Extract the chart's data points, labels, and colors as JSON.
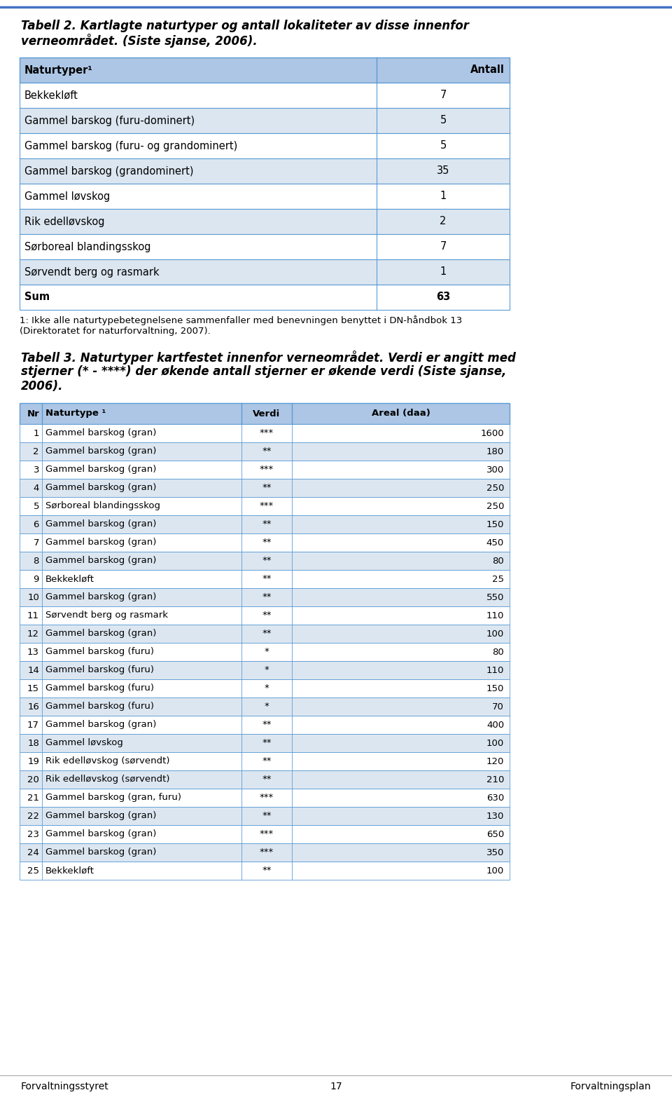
{
  "page_bg": "#ffffff",
  "top_line_color": "#4472c4",
  "header_bg": "#adc6e5",
  "title1_line1": "Tabell 2. Kartlagte naturtyper og antall lokaliteter av disse innenfor",
  "title1_line2": "verneområdet. (Siste sjanse, 2006).",
  "table1_col1_header": "Naturtyper¹",
  "table1_col2_header": "Antall",
  "table1_rows": [
    [
      "Bekkekløft",
      "7"
    ],
    [
      "Gammel barskog (furu-dominert)",
      "5"
    ],
    [
      "Gammel barskog (furu- og grandominert)",
      "5"
    ],
    [
      "Gammel barskog (grandominert)",
      "35"
    ],
    [
      "Gammel løvskog",
      "1"
    ],
    [
      "Rik edelløvskog",
      "2"
    ],
    [
      "Sørboreal blandingsskog",
      "7"
    ],
    [
      "Sørvendt berg og rasmark",
      "1"
    ],
    [
      "Sum",
      "63"
    ]
  ],
  "footnote_line1": "1: Ikke alle naturtypebetegnelsene sammenfaller med benevningen benyttet i DN-håndbok 13",
  "footnote_line2": "(Direktoratet for naturforvaltning, 2007).",
  "title2_line1": "Tabell 3. Naturtyper kartfestet innenfor verneområdet. Verdi er angitt med",
  "title2_line2": "stjerner (* - ****) der økende antall stjerner er økende verdi (Siste sjanse,",
  "title2_line3": "2006).",
  "table2_col_headers": [
    "Nr",
    "Naturtype ¹",
    "Verdi",
    "Areal (daa)"
  ],
  "table2_rows": [
    [
      "1",
      "Gammel barskog (gran)",
      "***",
      "1600"
    ],
    [
      "2",
      "Gammel barskog (gran)",
      "**",
      "180"
    ],
    [
      "3",
      "Gammel barskog (gran)",
      "***",
      "300"
    ],
    [
      "4",
      "Gammel barskog (gran)",
      "**",
      "250"
    ],
    [
      "5",
      "Sørboreal blandingsskog",
      "***",
      "250"
    ],
    [
      "6",
      "Gammel barskog (gran)",
      "**",
      "150"
    ],
    [
      "7",
      "Gammel barskog (gran)",
      "**",
      "450"
    ],
    [
      "8",
      "Gammel barskog (gran)",
      "**",
      "80"
    ],
    [
      "9",
      "Bekkekløft",
      "**",
      "25"
    ],
    [
      "10",
      "Gammel barskog (gran)",
      "**",
      "550"
    ],
    [
      "11",
      "Sørvendt berg og rasmark",
      "**",
      "110"
    ],
    [
      "12",
      "Gammel barskog (gran)",
      "**",
      "100"
    ],
    [
      "13",
      "Gammel barskog (furu)",
      "*",
      "80"
    ],
    [
      "14",
      "Gammel barskog (furu)",
      "*",
      "110"
    ],
    [
      "15",
      "Gammel barskog (furu)",
      "*",
      "150"
    ],
    [
      "16",
      "Gammel barskog (furu)",
      "*",
      "70"
    ],
    [
      "17",
      "Gammel barskog (gran)",
      "**",
      "400"
    ],
    [
      "18",
      "Gammel løvskog",
      "**",
      "100"
    ],
    [
      "19",
      "Rik edelløvskog (sørvendt)",
      "**",
      "120"
    ],
    [
      "20",
      "Rik edelløvskog (sørvendt)",
      "**",
      "210"
    ],
    [
      "21",
      "Gammel barskog (gran, furu)",
      "***",
      "630"
    ],
    [
      "22",
      "Gammel barskog (gran)",
      "**",
      "130"
    ],
    [
      "23",
      "Gammel barskog (gran)",
      "***",
      "650"
    ],
    [
      "24",
      "Gammel barskog (gran)",
      "***",
      "350"
    ],
    [
      "25",
      "Bekkekløft",
      "**",
      "100"
    ]
  ],
  "footer_left": "Forvaltningsstyret",
  "footer_center": "17",
  "footer_right": "Forvaltningsplan",
  "row_colors": [
    "#ffffff",
    "#dce6f0"
  ],
  "border_color": "#5b9bd5",
  "text_color": "#000000"
}
